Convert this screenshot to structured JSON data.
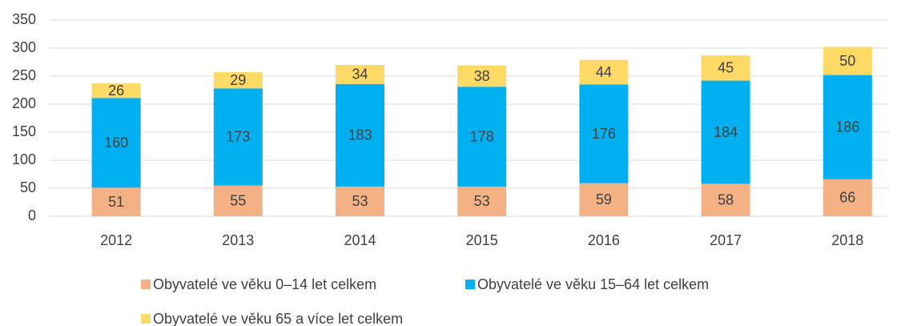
{
  "chart_data": {
    "type": "stacked_bar",
    "categories": [
      "2012",
      "2013",
      "2014",
      "2015",
      "2016",
      "2017",
      "2018"
    ],
    "series": [
      {
        "name": "Obyvatelé ve věku 0–14 let celkem",
        "color": "#f4b183",
        "values": [
          51,
          55,
          53,
          53,
          59,
          58,
          66
        ]
      },
      {
        "name": "Obyvatelé ve věku 15–64 let celkem",
        "color": "#00b0f0",
        "values": [
          160,
          173,
          183,
          178,
          176,
          184,
          186
        ]
      },
      {
        "name": "Obyvatelé ve věku 65 a více let celkem",
        "color": "#ffd966",
        "values": [
          26,
          29,
          34,
          38,
          44,
          45,
          50
        ]
      }
    ],
    "ylim": [
      0,
      350
    ],
    "yticks": [
      0,
      50,
      100,
      150,
      200,
      250,
      300,
      350
    ],
    "grid": true,
    "legend": "bottom"
  }
}
